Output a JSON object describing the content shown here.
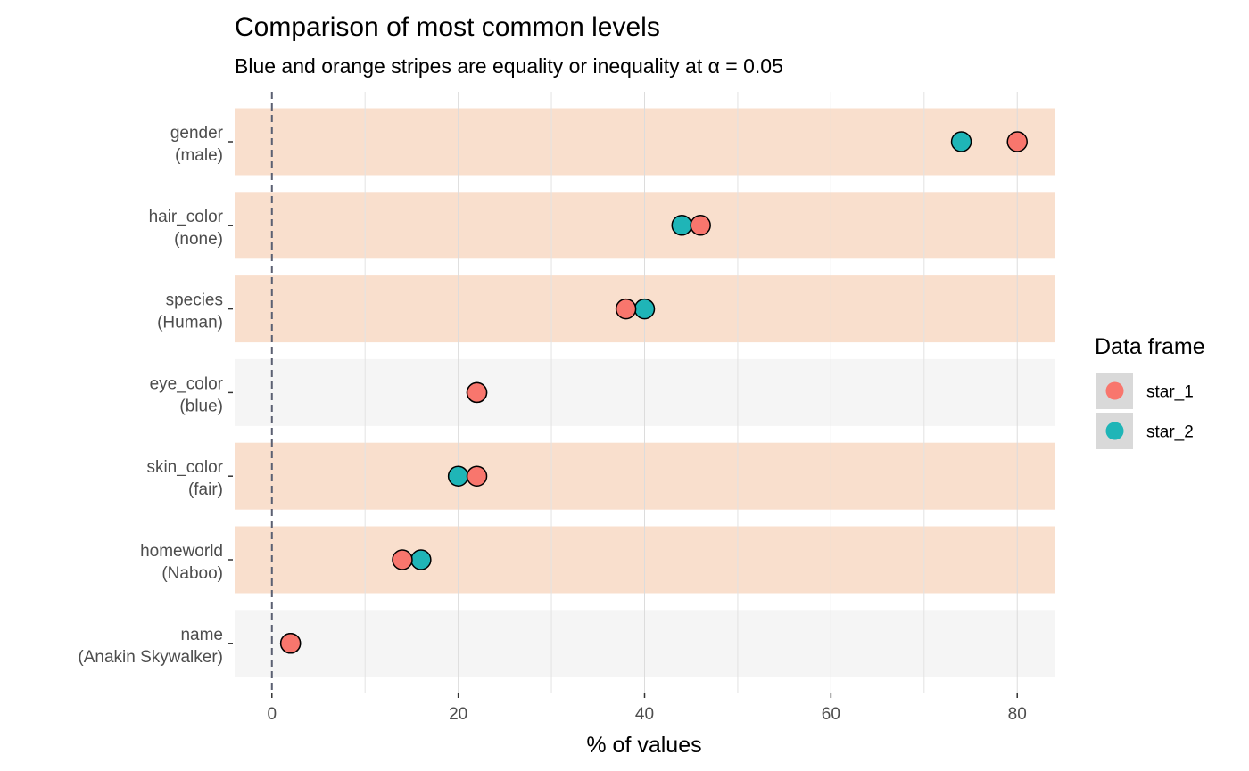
{
  "chart_data": {
    "type": "scatter",
    "title": "Comparison of most common levels",
    "subtitle": "Blue and orange stripes are equality or inequality at α = 0.05",
    "xlabel": "% of values",
    "ylabel": "",
    "xlim": [
      -4,
      84
    ],
    "x_ticks": [
      0,
      20,
      40,
      60,
      80
    ],
    "x_minor_grid": [
      10,
      30,
      50,
      70
    ],
    "reference_line": {
      "x": 0,
      "style": "dashed",
      "color": "#5b6072"
    },
    "grid": true,
    "stripe_colors": {
      "inequality": "#f9dfcd",
      "equality": "#f5f5f5"
    },
    "categories": [
      {
        "variable": "gender",
        "level": "(male)",
        "stripe": "inequality"
      },
      {
        "variable": "hair_color",
        "level": "(none)",
        "stripe": "inequality"
      },
      {
        "variable": "species",
        "level": "(Human)",
        "stripe": "inequality"
      },
      {
        "variable": "eye_color",
        "level": "(blue)",
        "stripe": "equality"
      },
      {
        "variable": "skin_color",
        "level": "(fair)",
        "stripe": "inequality"
      },
      {
        "variable": "homeworld",
        "level": "(Naboo)",
        "stripe": "inequality"
      },
      {
        "variable": "name",
        "level": "(Anakin Skywalker)",
        "stripe": "equality"
      }
    ],
    "series": [
      {
        "name": "star_1",
        "color": "#f8766d",
        "values": [
          80,
          46,
          38,
          22,
          22,
          14,
          2
        ]
      },
      {
        "name": "star_2",
        "color": "#1fb5b7",
        "values": [
          74,
          44,
          40,
          22,
          20,
          16,
          2
        ]
      }
    ],
    "legend": {
      "title": "Data frame",
      "position": "right"
    }
  }
}
